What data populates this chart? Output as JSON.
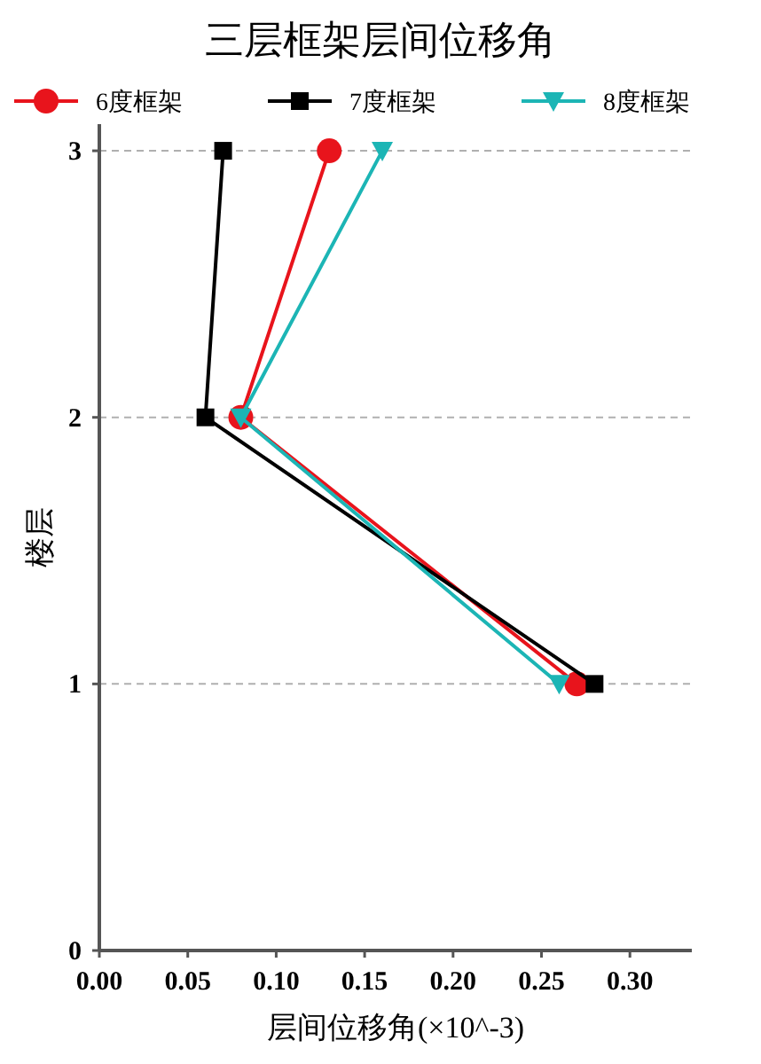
{
  "chart_data": {
    "type": "line",
    "title": "三层框架层间位移角",
    "xlabel": "层间位移角(×10^-3)",
    "ylabel": "楼层",
    "xlim": [
      0,
      0.335
    ],
    "xticks": [
      {
        "value": 0,
        "label": "0.00"
      },
      {
        "value": 0.05,
        "label": "0.05"
      },
      {
        "value": 0.1,
        "label": "0.10"
      },
      {
        "value": 0.15,
        "label": "0.15"
      },
      {
        "value": 0.2,
        "label": "0.20"
      },
      {
        "value": 0.25,
        "label": "0.25"
      },
      {
        "value": 0.3,
        "label": "0.30"
      }
    ],
    "ylim": [
      0,
      3.1
    ],
    "yticks": [
      0,
      1,
      2,
      3
    ],
    "grid": "y",
    "legend": "top",
    "line_style": "solid",
    "series": [
      {
        "name": "6度框架",
        "color": "#e8141c",
        "marker": "circle",
        "x": [
          0.27,
          0.08,
          0.13
        ],
        "values": [
          1,
          2,
          3
        ]
      },
      {
        "name": "7度框架",
        "color": "#000000",
        "marker": "square",
        "x": [
          0.28,
          0.06,
          0.07
        ],
        "values": [
          1,
          2,
          3
        ]
      },
      {
        "name": "8度框架",
        "color": "#1cb5b5",
        "marker": "triangle",
        "x": [
          0.26,
          0.08,
          0.16
        ],
        "values": [
          1,
          2,
          3
        ]
      }
    ]
  }
}
